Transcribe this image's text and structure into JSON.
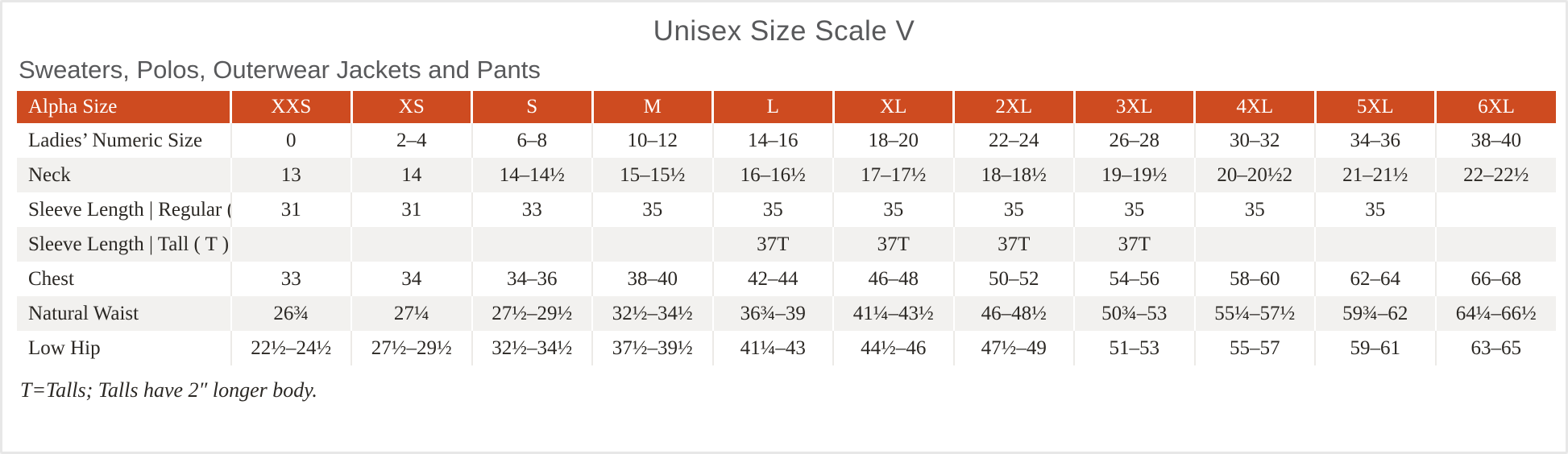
{
  "page": {
    "title": "Unisex Size Scale V",
    "subtitle": "Sweaters, Polos, Outerwear Jackets and Pants",
    "footnote": "T=Talls; Talls have 2″ longer body."
  },
  "colors": {
    "header_bg": "#ce4b20",
    "header_text": "#ffffff",
    "stripe_bg": "#f2f1ef",
    "title_text": "#58595b",
    "body_text": "#2b2824"
  },
  "chart_data": {
    "type": "table",
    "columns": [
      "Alpha Size",
      "XXS",
      "XS",
      "S",
      "M",
      "L",
      "XL",
      "2XL",
      "3XL",
      "4XL",
      "5XL",
      "6XL"
    ],
    "rows": [
      {
        "label": "Ladies’ Numeric Size",
        "values": [
          "0",
          "2–4",
          "6–8",
          "10–12",
          "14–16",
          "18–20",
          "22–24",
          "26–28",
          "30–32",
          "34–36",
          "38–40"
        ]
      },
      {
        "label": "Neck",
        "values": [
          "13",
          "14",
          "14–14½",
          "15–15½",
          "16–16½",
          "17–17½",
          "18–18½",
          "19–19½",
          "20–20½2",
          "21–21½",
          "22–22½"
        ]
      },
      {
        "label": "Sleeve Length | Regular ( R )",
        "values": [
          "31",
          "31",
          "33",
          "35",
          "35",
          "35",
          "35",
          "35",
          "35",
          "35",
          ""
        ]
      },
      {
        "label": "Sleeve Length | Tall ( T )",
        "values": [
          "",
          "",
          "",
          "",
          "37T",
          "37T",
          "37T",
          "37T",
          "",
          "",
          ""
        ]
      },
      {
        "label": "Chest",
        "values": [
          "33",
          "34",
          "34–36",
          "38–40",
          "42–44",
          "46–48",
          "50–52",
          "54–56",
          "58–60",
          "62–64",
          "66–68"
        ]
      },
      {
        "label": "Natural Waist",
        "values": [
          "26¾",
          "27¼",
          "27½–29½",
          "32½–34½",
          "36¾–39",
          "41¼–43½",
          "46–48½",
          "50¾–53",
          "55¼–57½",
          "59¾–62",
          "64¼–66½"
        ]
      },
      {
        "label": "Low Hip",
        "values": [
          "22½–24½",
          "27½–29½",
          "32½–34½",
          "37½–39½",
          "41¼–43",
          "44½–46",
          "47½–49",
          "51–53",
          "55–57",
          "59–61",
          "63–65"
        ]
      }
    ]
  }
}
